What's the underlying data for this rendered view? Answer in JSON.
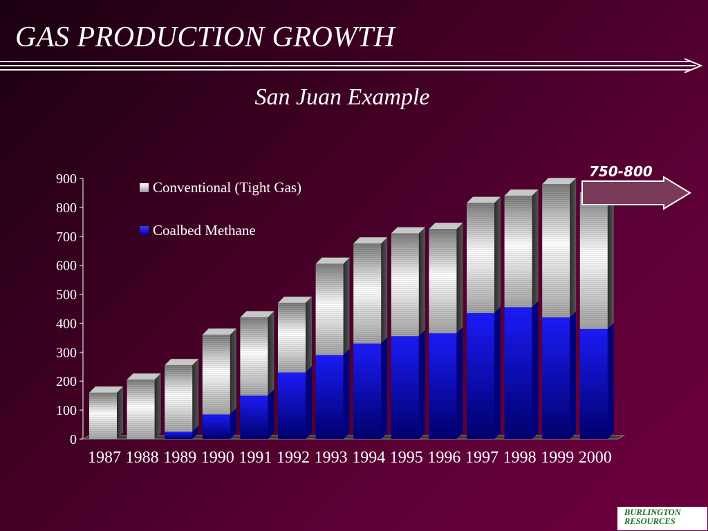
{
  "slide": {
    "title": "GAS PRODUCTION GROWTH",
    "subtitle": "San Juan Example",
    "projection_label": "750-800",
    "logo_text": "BURLINGTON RESOURCES"
  },
  "colors": {
    "background": "#4a002a",
    "conventional": "#d8d8d8",
    "coalbed": "#1010e0",
    "text": "#ffffff",
    "logo_text": "#1f6b2a"
  },
  "chart_data": {
    "type": "bar",
    "stacked": true,
    "title": "San Juan Example",
    "categories": [
      "1987",
      "1988",
      "1989",
      "1990",
      "1991",
      "1992",
      "1993",
      "1994",
      "1995",
      "1996",
      "1997",
      "1998",
      "1999",
      "2000"
    ],
    "series": [
      {
        "name": "Conventional (Tight Gas)",
        "values": [
          160,
          205,
          230,
          275,
          270,
          240,
          315,
          345,
          355,
          360,
          380,
          385,
          460,
          470
        ]
      },
      {
        "name": "Coalbed Methane",
        "values": [
          0,
          0,
          25,
          85,
          150,
          230,
          290,
          330,
          355,
          365,
          435,
          455,
          420,
          380
        ]
      }
    ],
    "ylim": [
      0,
      900
    ],
    "yticks": [
      0,
      100,
      200,
      300,
      400,
      500,
      600,
      700,
      800,
      900
    ],
    "legend_position": "top-left",
    "annotation": "750-800",
    "grid": false
  }
}
